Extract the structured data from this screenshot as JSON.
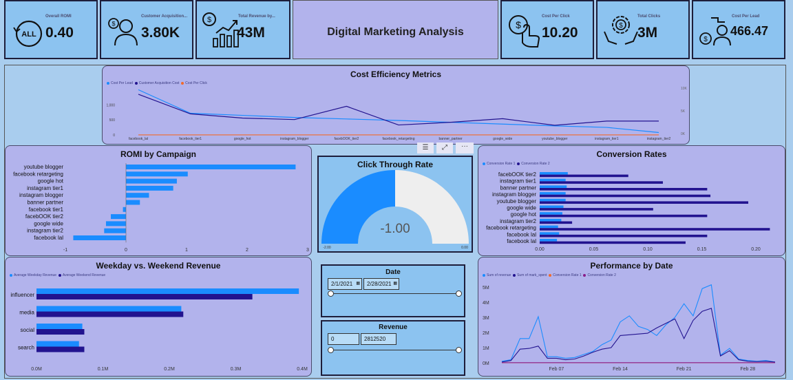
{
  "kpis": [
    {
      "title": "Overall ROMI",
      "value": "0.40",
      "icon": "all-cycle-icon"
    },
    {
      "title": "Customer Acquisition...",
      "value": "3.80K",
      "icon": "customer-dollar-icon"
    },
    {
      "title": "Total Revenue by...",
      "value": "43M",
      "icon": "revenue-growth-icon"
    },
    {
      "title": "Cost Per Click",
      "value": "10.20",
      "icon": "click-dollar-icon"
    },
    {
      "title": "Total Clicks",
      "value": "3M",
      "icon": "hands-gear-dollar-icon"
    },
    {
      "title": "Cost Per Lead",
      "value": "466.47",
      "icon": "lead-dollar-icon"
    }
  ],
  "header": {
    "title": "Digital Marketing Analysis"
  },
  "colors": {
    "blue": "#1a8cff",
    "navy": "#22138f",
    "orange": "#f26a2a",
    "purple": "#8a1d8a",
    "panel": "#b2b3ec",
    "card": "#8cc3f0"
  },
  "visual_toolbar": [
    "filter-icon",
    "focus-mode-icon",
    "more-options-icon"
  ],
  "date_slicer": {
    "title": "Date",
    "start": "2/1/2021",
    "end": "2/28/2021"
  },
  "revenue_slicer": {
    "title": "Revenue",
    "min": "0",
    "max": "2812520"
  },
  "chart_data": [
    {
      "id": "cost_eff",
      "type": "line",
      "title": "Cost Efficiency Metrics",
      "categories": [
        "facebook_lal",
        "facebook_tier1",
        "google_hot",
        "instagram_blogger",
        "facebOOK_tier2",
        "facebook_retargeting",
        "banner_partner",
        "google_wide",
        "youtube_blogger",
        "instagram_tier1",
        "instagram_tier2"
      ],
      "series": [
        {
          "name": "Cost Per Lead",
          "color": "#1a8cff",
          "values": [
            1500,
            720,
            650,
            580,
            530,
            480,
            420,
            360,
            300,
            250,
            80
          ]
        },
        {
          "name": "Customer Acquisition Cost",
          "color": "#22138f",
          "values": [
            1350,
            700,
            560,
            510,
            950,
            330,
            420,
            540,
            320,
            460,
            460
          ]
        },
        {
          "name": "Cost Per Click",
          "color": "#f26a2a",
          "values": [
            2,
            2,
            2,
            2,
            2,
            2,
            2,
            2,
            2,
            2,
            2
          ]
        }
      ],
      "y_ticks": [
        "0",
        "500",
        "1,000"
      ],
      "y_right_ticks": [
        "0K",
        "5K",
        "10K"
      ]
    },
    {
      "id": "romi",
      "type": "bar",
      "title": "ROMI by Campaign",
      "categories": [
        "youtube blogger",
        "facebook retargeting",
        "google hot",
        "instagram tier1",
        "instagram blogger",
        "banner partner",
        "facebook tier1",
        "facebOOK tier2",
        "google wide",
        "instagram tier2",
        "facebook lal"
      ],
      "values": [
        2.8,
        1.02,
        0.84,
        0.78,
        0.38,
        0.23,
        -0.05,
        -0.25,
        -0.33,
        -0.36,
        -0.87
      ],
      "xlim": [
        -1,
        3
      ],
      "x_ticks": [
        "-1",
        "0",
        "1",
        "2",
        "3"
      ]
    },
    {
      "id": "ctr",
      "type": "gauge",
      "title": "Click Through Rate",
      "value": "-1.00",
      "min": "-2.00",
      "max": "0.00",
      "fraction": 0.5
    },
    {
      "id": "conv",
      "type": "bar",
      "title": "Conversion Rates",
      "categories": [
        "facebOOK tier2",
        "instagram tier1",
        "banner partner",
        "instagram blogger",
        "youtube blogger",
        "google wide",
        "google hot",
        "instagram tier2",
        "facebook retargeting",
        "facebook lal",
        "facebook lal"
      ],
      "series": [
        {
          "name": "Conversion Rate 1",
          "color": "#1a8cff",
          "values": [
            0.026,
            0.024,
            0.025,
            0.024,
            0.024,
            0.022,
            0.021,
            0.02,
            0.017,
            0.018,
            0.016
          ]
        },
        {
          "name": "Conversion Rate 2",
          "color": "#22138f",
          "values": [
            0.082,
            0.114,
            0.155,
            0.158,
            0.193,
            0.105,
            0.155,
            0.03,
            0.213,
            0.155,
            0.135
          ]
        }
      ],
      "x_ticks": [
        "0.00",
        "0.05",
        "0.10",
        "0.15",
        "0.20"
      ],
      "xmax": 0.225
    },
    {
      "id": "weekday",
      "type": "bar",
      "title": "Weekday vs. Weekend Revenue",
      "categories": [
        "influencer",
        "media",
        "social",
        "search"
      ],
      "series": [
        {
          "name": "Average Weekday Revenue",
          "color": "#1a8cff",
          "values": [
            0.395,
            0.218,
            0.069,
            0.064
          ]
        },
        {
          "name": "Average Weekend Revenue",
          "color": "#22138f",
          "values": [
            0.325,
            0.221,
            0.072,
            0.072
          ]
        }
      ],
      "x_ticks": [
        "0.0M",
        "0.1M",
        "0.2M",
        "0.3M",
        "0.4M"
      ],
      "xmax": 0.4
    },
    {
      "id": "perf",
      "type": "line",
      "title": "Performance by Date",
      "y_ticks": [
        "0M",
        "1M",
        "2M",
        "3M",
        "4M",
        "5M"
      ],
      "x_ticks": [
        "Feb 07",
        "Feb 14",
        "Feb 21",
        "Feb 28"
      ],
      "series": [
        {
          "name": "Sum of revenue",
          "color": "#1a8cff",
          "values": [
            0.1,
            0.2,
            1.6,
            1.6,
            3.05,
            0.4,
            0.4,
            0.3,
            0.35,
            0.55,
            0.75,
            1.2,
            1.5,
            2.7,
            3.1,
            2.4,
            2.2,
            1.8,
            2.5,
            3.0,
            3.9,
            3.1,
            4.9,
            5.15,
            0.5,
            0.95,
            0.25,
            0.15,
            0.1,
            0.15,
            0.05
          ]
        },
        {
          "name": "Sum of mark_spent",
          "color": "#22138f",
          "values": [
            0.05,
            0.15,
            0.9,
            0.95,
            1.1,
            0.3,
            0.3,
            0.2,
            0.25,
            0.45,
            0.7,
            0.9,
            1.0,
            1.8,
            1.85,
            1.9,
            1.95,
            2.3,
            2.6,
            2.9,
            1.6,
            2.8,
            3.4,
            3.6,
            0.45,
            0.8,
            0.2,
            0.1,
            0.08,
            0.1,
            0.05
          ]
        },
        {
          "name": "Conversion Rate 1",
          "color": "#f26a2a",
          "values": [
            0,
            0,
            0,
            0,
            0,
            0,
            0,
            0,
            0,
            0,
            0,
            0,
            0,
            0,
            0,
            0,
            0,
            0,
            0,
            0,
            0,
            0,
            0,
            0,
            0,
            0,
            0,
            0,
            0,
            0,
            0
          ]
        },
        {
          "name": "Conversion Rate 2",
          "color": "#8a1d8a",
          "values": [
            0.01,
            0.01,
            0.01,
            0.01,
            0.01,
            0.01,
            0.01,
            0.01,
            0.01,
            0.01,
            0.01,
            0.01,
            0.01,
            0.01,
            0.01,
            0.01,
            0.01,
            0.01,
            0.01,
            0.01,
            0.01,
            0.01,
            0.01,
            0.01,
            0.01,
            0.01,
            0.01,
            0.01,
            0.01,
            0.01,
            0.01
          ]
        }
      ],
      "ymax": 5.5
    }
  ]
}
